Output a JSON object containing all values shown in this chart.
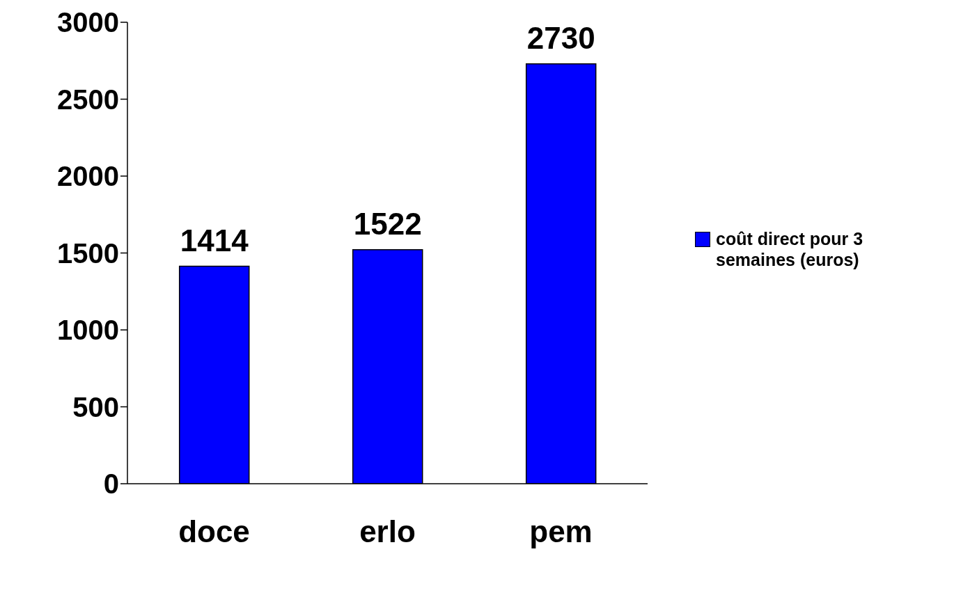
{
  "chart_data": {
    "type": "bar",
    "categories": [
      "doce",
      "erlo",
      "pem"
    ],
    "series": [
      {
        "name": "coût direct pour 3 semaines (euros)",
        "color": "#0000ff",
        "values": [
          1414,
          1522,
          2730
        ]
      }
    ],
    "ylim": [
      0,
      3000
    ],
    "yticks": [
      0,
      500,
      1000,
      1500,
      2000,
      2500,
      3000
    ],
    "grid": false,
    "legend": "right",
    "data_labels": true
  }
}
